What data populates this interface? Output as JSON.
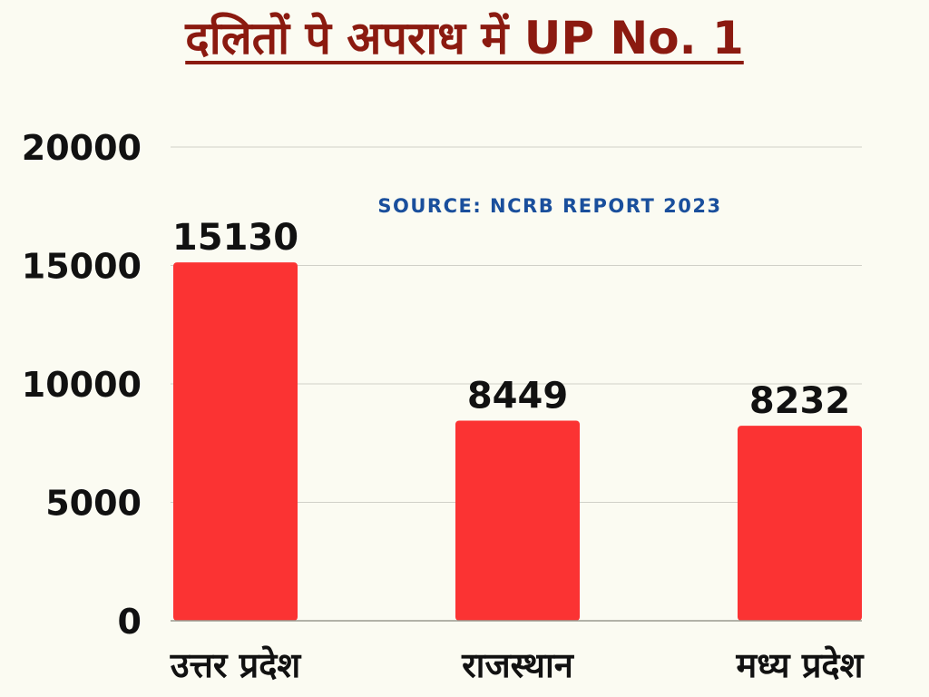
{
  "chart_data": {
    "type": "bar",
    "title": "दलितों पे अपराध में UP No. 1",
    "annotation": "SOURCE: NCRB REPORT 2023",
    "categories": [
      "उत्तर प्रदेश",
      "राजस्थान",
      "मध्य प्रदेश"
    ],
    "values": [
      15130,
      8449,
      8232
    ],
    "data_labels": [
      "15130",
      "8449",
      "8232"
    ],
    "yticks": [
      "0",
      "5000",
      "10000",
      "15000",
      "20000"
    ],
    "ylim": [
      0,
      20000
    ],
    "xlabel": "",
    "ylabel": "",
    "grid": true,
    "legend": "none",
    "colors": {
      "bar": "#fb3333",
      "title": "#8b1a10",
      "source": "#1a4f9c",
      "grid": "#d0d0c8",
      "axis": "#9a9a90",
      "text": "#111111",
      "background": "#fbfbf2"
    }
  }
}
